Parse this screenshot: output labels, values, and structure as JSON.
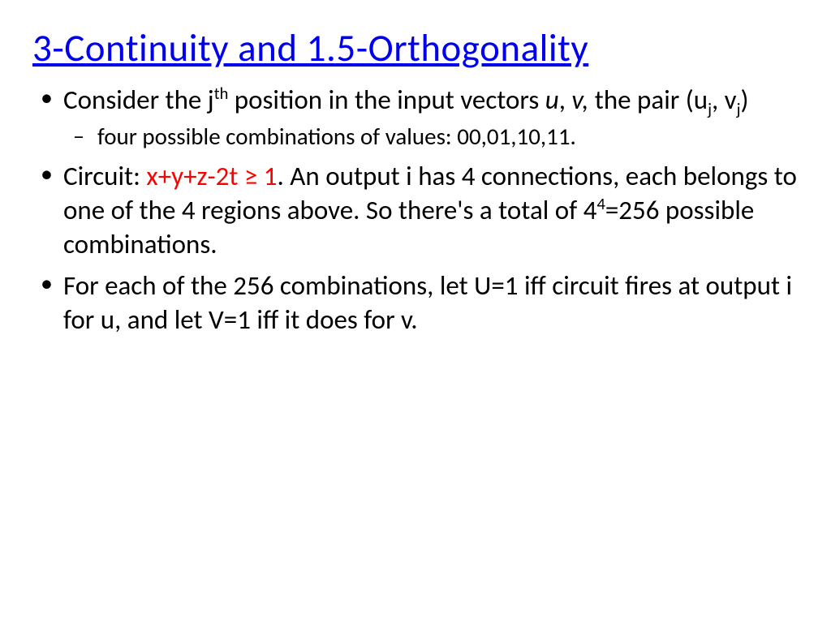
{
  "colors": {
    "title_color": "#0000ee",
    "body_text_color": "#000000",
    "highlight_color": "#ff0000",
    "background_color": "#ffffff"
  },
  "typography": {
    "title_fontsize": 47,
    "bullet_fontsize": 33,
    "sub_bullet_fontsize": 29,
    "font_family": "Calibri"
  },
  "title": "3-Continuity and 1.5-Orthogonality",
  "bullets": {
    "b1": {
      "pre": "Consider the j",
      "sup1": "th",
      "mid1": " position in the input vectors ",
      "u": "u",
      "comma1": ", ",
      "v": "v,",
      "mid2": " the pair (u",
      "subj1": "j",
      "comma2": ", v",
      "subj2": "j",
      "close": ")"
    },
    "b1sub": "four possible combinations of values: 00,01,10,11.",
    "b2": {
      "pre": "Circuit: ",
      "red": "x+y+z-2t ≥ 1",
      "mid1": ". An output i has 4 connections, each belongs to one of the 4 regions above. So there's a total of 4",
      "sup4": "4",
      "post": "=256 possible combinations."
    },
    "b3": "For each of the 256 combinations, let U=1 iff circuit fires at output i for u, and let V=1 iff it does for v."
  }
}
